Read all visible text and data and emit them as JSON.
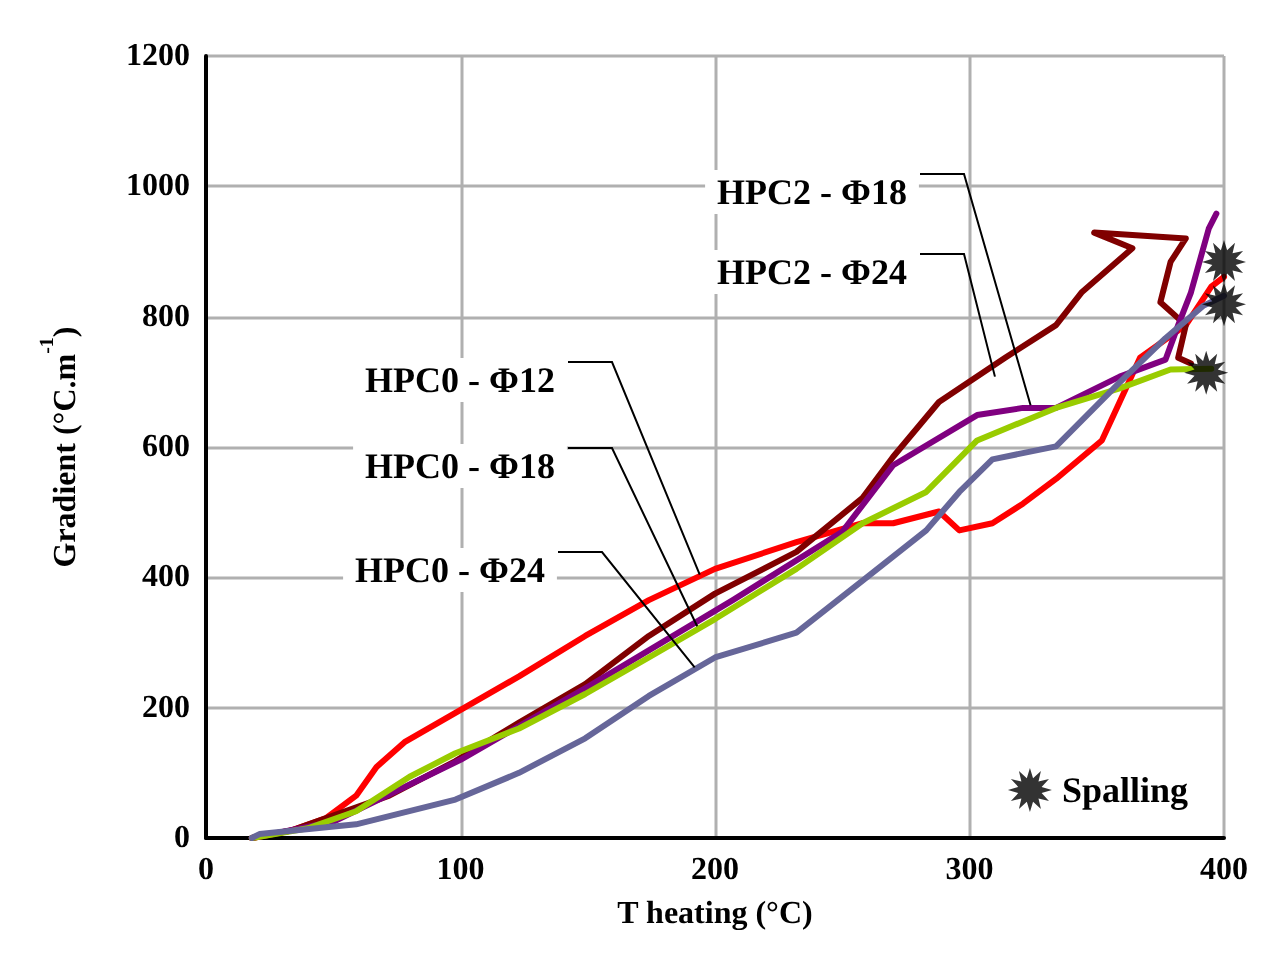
{
  "chart_data": {
    "type": "line",
    "xlabel": "T heating (°C)",
    "ylabel": "Gradient (°C.m$^{-1}$)",
    "xlim": [
      0,
      400
    ],
    "xticks": [
      0,
      100,
      200,
      300,
      400
    ],
    "ylim": [
      0,
      1200
    ],
    "yticks": [
      0,
      200,
      400,
      600,
      800,
      1000,
      1200
    ],
    "grid": true,
    "legend": "bottom right",
    "marker": "none",
    "line_style": "solid",
    "series": [
      {
        "color": "#ff0000",
        "x": [
          18,
          34,
          47,
          59,
          67,
          78,
          98,
          123,
          149,
          174,
          200,
          232,
          258,
          270,
          288,
          296,
          309,
          321,
          334,
          352,
          359,
          367,
          385,
          395,
          400
        ],
        "values": [
          0,
          12,
          30,
          65,
          109,
          147,
          192,
          248,
          310,
          365,
          413,
          454,
          483,
          483,
          501,
          472,
          483,
          513,
          551,
          610,
          669,
          737,
          787,
          846,
          861
        ]
      },
      {
        "color": "#800000",
        "x": [
          18,
          34,
          72,
          98,
          123,
          149,
          174,
          200,
          232,
          258,
          270,
          288,
          314,
          334,
          344,
          364,
          349,
          385,
          379,
          375,
          385,
          382,
          387
        ],
        "values": [
          0,
          12,
          65,
          118,
          177,
          236,
          310,
          375,
          439,
          522,
          585,
          669,
          737,
          787,
          837,
          905,
          929,
          920,
          884,
          822,
          787,
          737,
          728
        ]
      },
      {
        "color": "#800080",
        "x": [
          18,
          50,
          100,
          150,
          207,
          250,
          270,
          303,
          321,
          334,
          359,
          377,
          382,
          387,
          394,
          397
        ],
        "values": [
          0,
          25,
          120,
          232,
          365,
          470,
          572,
          649,
          660,
          660,
          708,
          734,
          787,
          837,
          935,
          958
        ]
      },
      {
        "color": "#99cc00",
        "x": [
          18,
          40,
          59,
          80,
          98,
          123,
          149,
          174,
          200,
          232,
          258,
          283,
          303,
          334,
          359,
          379,
          395
        ],
        "values": [
          0,
          15,
          41,
          94,
          130,
          168,
          221,
          277,
          336,
          413,
          483,
          531,
          610,
          660,
          690,
          719,
          720
        ]
      },
      {
        "color": "#666699",
        "x": [
          18,
          21,
          59,
          98,
          123,
          149,
          174,
          200,
          232,
          258,
          283,
          296,
          309,
          334,
          359,
          377,
          392,
          400
        ],
        "values": [
          0,
          6,
          21,
          59,
          100,
          153,
          218,
          277,
          315,
          395,
          472,
          531,
          581,
          601,
          699,
          767,
          817,
          832
        ]
      },
      {
        "type": "scatter",
        "name": "Spalling",
        "color": "#000000",
        "marker": "star",
        "x": [
          400,
          400,
          393
        ],
        "values": [
          884,
          819,
          714
        ]
      }
    ],
    "annotations": [
      {
        "text": "HPC2 - Φ18",
        "x": 324,
        "y": 664
      },
      {
        "text": "HPC2 - Φ24",
        "x": 310,
        "y": 708
      },
      {
        "text": "HPC0 - Φ12",
        "x": 194,
        "y": 404
      },
      {
        "text": "HPC0 - Φ18",
        "x": 193,
        "y": 325
      },
      {
        "text": "HPC0 - Φ24",
        "x": 192,
        "y": 262
      }
    ]
  }
}
